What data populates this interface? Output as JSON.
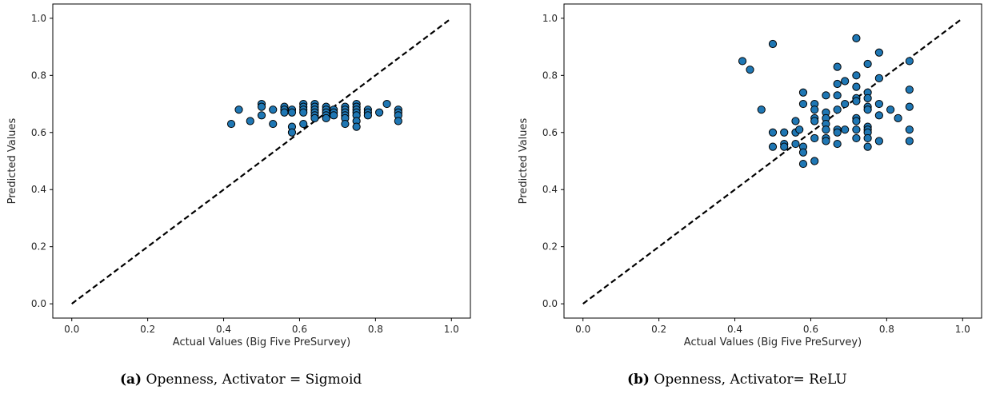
{
  "chart_data": [
    {
      "type": "scatter",
      "caption_tag": "(a)",
      "caption_text": "Openness, Activator = Sigmoid",
      "xlabel": "Actual Values (Big Five PreSurvey)",
      "ylabel": "Predicted Values",
      "xlim": [
        -0.05,
        1.05
      ],
      "ylim": [
        -0.05,
        1.05
      ],
      "xticks": [
        "0.0",
        "0.2",
        "0.4",
        "0.6",
        "0.8",
        "1.0"
      ],
      "yticks": [
        "0.0",
        "0.2",
        "0.4",
        "0.6",
        "0.8",
        "1.0"
      ],
      "reference_line": {
        "style": "dashed",
        "from": [
          0,
          0
        ],
        "to": [
          1,
          1
        ],
        "color": "#000000"
      },
      "marker_color": "#1f77b4",
      "points": [
        [
          0.42,
          0.63
        ],
        [
          0.44,
          0.68
        ],
        [
          0.47,
          0.64
        ],
        [
          0.5,
          0.7
        ],
        [
          0.5,
          0.69
        ],
        [
          0.5,
          0.66
        ],
        [
          0.53,
          0.68
        ],
        [
          0.53,
          0.63
        ],
        [
          0.56,
          0.69
        ],
        [
          0.56,
          0.68
        ],
        [
          0.56,
          0.67
        ],
        [
          0.58,
          0.68
        ],
        [
          0.58,
          0.67
        ],
        [
          0.58,
          0.62
        ],
        [
          0.58,
          0.6
        ],
        [
          0.61,
          0.7
        ],
        [
          0.61,
          0.69
        ],
        [
          0.61,
          0.68
        ],
        [
          0.61,
          0.67
        ],
        [
          0.61,
          0.63
        ],
        [
          0.64,
          0.7
        ],
        [
          0.64,
          0.69
        ],
        [
          0.64,
          0.68
        ],
        [
          0.64,
          0.67
        ],
        [
          0.64,
          0.66
        ],
        [
          0.64,
          0.65
        ],
        [
          0.67,
          0.69
        ],
        [
          0.67,
          0.68
        ],
        [
          0.67,
          0.67
        ],
        [
          0.67,
          0.66
        ],
        [
          0.67,
          0.65
        ],
        [
          0.69,
          0.68
        ],
        [
          0.69,
          0.67
        ],
        [
          0.69,
          0.66
        ],
        [
          0.72,
          0.69
        ],
        [
          0.72,
          0.68
        ],
        [
          0.72,
          0.67
        ],
        [
          0.72,
          0.66
        ],
        [
          0.72,
          0.65
        ],
        [
          0.72,
          0.63
        ],
        [
          0.75,
          0.7
        ],
        [
          0.75,
          0.69
        ],
        [
          0.75,
          0.68
        ],
        [
          0.75,
          0.67
        ],
        [
          0.75,
          0.66
        ],
        [
          0.75,
          0.64
        ],
        [
          0.75,
          0.62
        ],
        [
          0.78,
          0.68
        ],
        [
          0.78,
          0.67
        ],
        [
          0.78,
          0.66
        ],
        [
          0.81,
          0.67
        ],
        [
          0.83,
          0.7
        ],
        [
          0.86,
          0.68
        ],
        [
          0.86,
          0.67
        ],
        [
          0.86,
          0.66
        ],
        [
          0.86,
          0.64
        ]
      ]
    },
    {
      "type": "scatter",
      "caption_tag": "(b)",
      "caption_text": "Openness, Activator= ReLU",
      "xlabel": "Actual Values (Big Five PreSurvey)",
      "ylabel": "Predicted Values",
      "xlim": [
        -0.05,
        1.05
      ],
      "ylim": [
        -0.05,
        1.05
      ],
      "xticks": [
        "0.0",
        "0.2",
        "0.4",
        "0.6",
        "0.8",
        "1.0"
      ],
      "yticks": [
        "0.0",
        "0.2",
        "0.4",
        "0.6",
        "0.8",
        "1.0"
      ],
      "reference_line": {
        "style": "dashed",
        "from": [
          0,
          0
        ],
        "to": [
          1,
          1
        ],
        "color": "#000000"
      },
      "marker_color": "#1f77b4",
      "points": [
        [
          0.42,
          0.85
        ],
        [
          0.44,
          0.82
        ],
        [
          0.47,
          0.68
        ],
        [
          0.5,
          0.91
        ],
        [
          0.5,
          0.6
        ],
        [
          0.5,
          0.55
        ],
        [
          0.53,
          0.6
        ],
        [
          0.53,
          0.56
        ],
        [
          0.53,
          0.55
        ],
        [
          0.56,
          0.64
        ],
        [
          0.56,
          0.6
        ],
        [
          0.56,
          0.56
        ],
        [
          0.57,
          0.61
        ],
        [
          0.58,
          0.74
        ],
        [
          0.58,
          0.7
        ],
        [
          0.58,
          0.55
        ],
        [
          0.58,
          0.53
        ],
        [
          0.58,
          0.49
        ],
        [
          0.61,
          0.7
        ],
        [
          0.61,
          0.68
        ],
        [
          0.61,
          0.65
        ],
        [
          0.61,
          0.64
        ],
        [
          0.61,
          0.58
        ],
        [
          0.61,
          0.5
        ],
        [
          0.64,
          0.73
        ],
        [
          0.64,
          0.67
        ],
        [
          0.64,
          0.65
        ],
        [
          0.64,
          0.63
        ],
        [
          0.64,
          0.61
        ],
        [
          0.64,
          0.58
        ],
        [
          0.64,
          0.57
        ],
        [
          0.67,
          0.83
        ],
        [
          0.67,
          0.77
        ],
        [
          0.67,
          0.73
        ],
        [
          0.67,
          0.68
        ],
        [
          0.67,
          0.61
        ],
        [
          0.67,
          0.6
        ],
        [
          0.67,
          0.56
        ],
        [
          0.69,
          0.78
        ],
        [
          0.69,
          0.7
        ],
        [
          0.69,
          0.61
        ],
        [
          0.72,
          0.93
        ],
        [
          0.72,
          0.8
        ],
        [
          0.72,
          0.76
        ],
        [
          0.72,
          0.72
        ],
        [
          0.72,
          0.71
        ],
        [
          0.72,
          0.65
        ],
        [
          0.72,
          0.64
        ],
        [
          0.72,
          0.61
        ],
        [
          0.72,
          0.58
        ],
        [
          0.75,
          0.84
        ],
        [
          0.75,
          0.74
        ],
        [
          0.75,
          0.72
        ],
        [
          0.75,
          0.69
        ],
        [
          0.75,
          0.68
        ],
        [
          0.75,
          0.62
        ],
        [
          0.75,
          0.61
        ],
        [
          0.75,
          0.6
        ],
        [
          0.75,
          0.58
        ],
        [
          0.75,
          0.55
        ],
        [
          0.78,
          0.88
        ],
        [
          0.78,
          0.79
        ],
        [
          0.78,
          0.7
        ],
        [
          0.78,
          0.66
        ],
        [
          0.78,
          0.57
        ],
        [
          0.81,
          0.68
        ],
        [
          0.83,
          0.65
        ],
        [
          0.86,
          0.85
        ],
        [
          0.86,
          0.75
        ],
        [
          0.86,
          0.69
        ],
        [
          0.86,
          0.61
        ],
        [
          0.86,
          0.57
        ]
      ]
    }
  ]
}
